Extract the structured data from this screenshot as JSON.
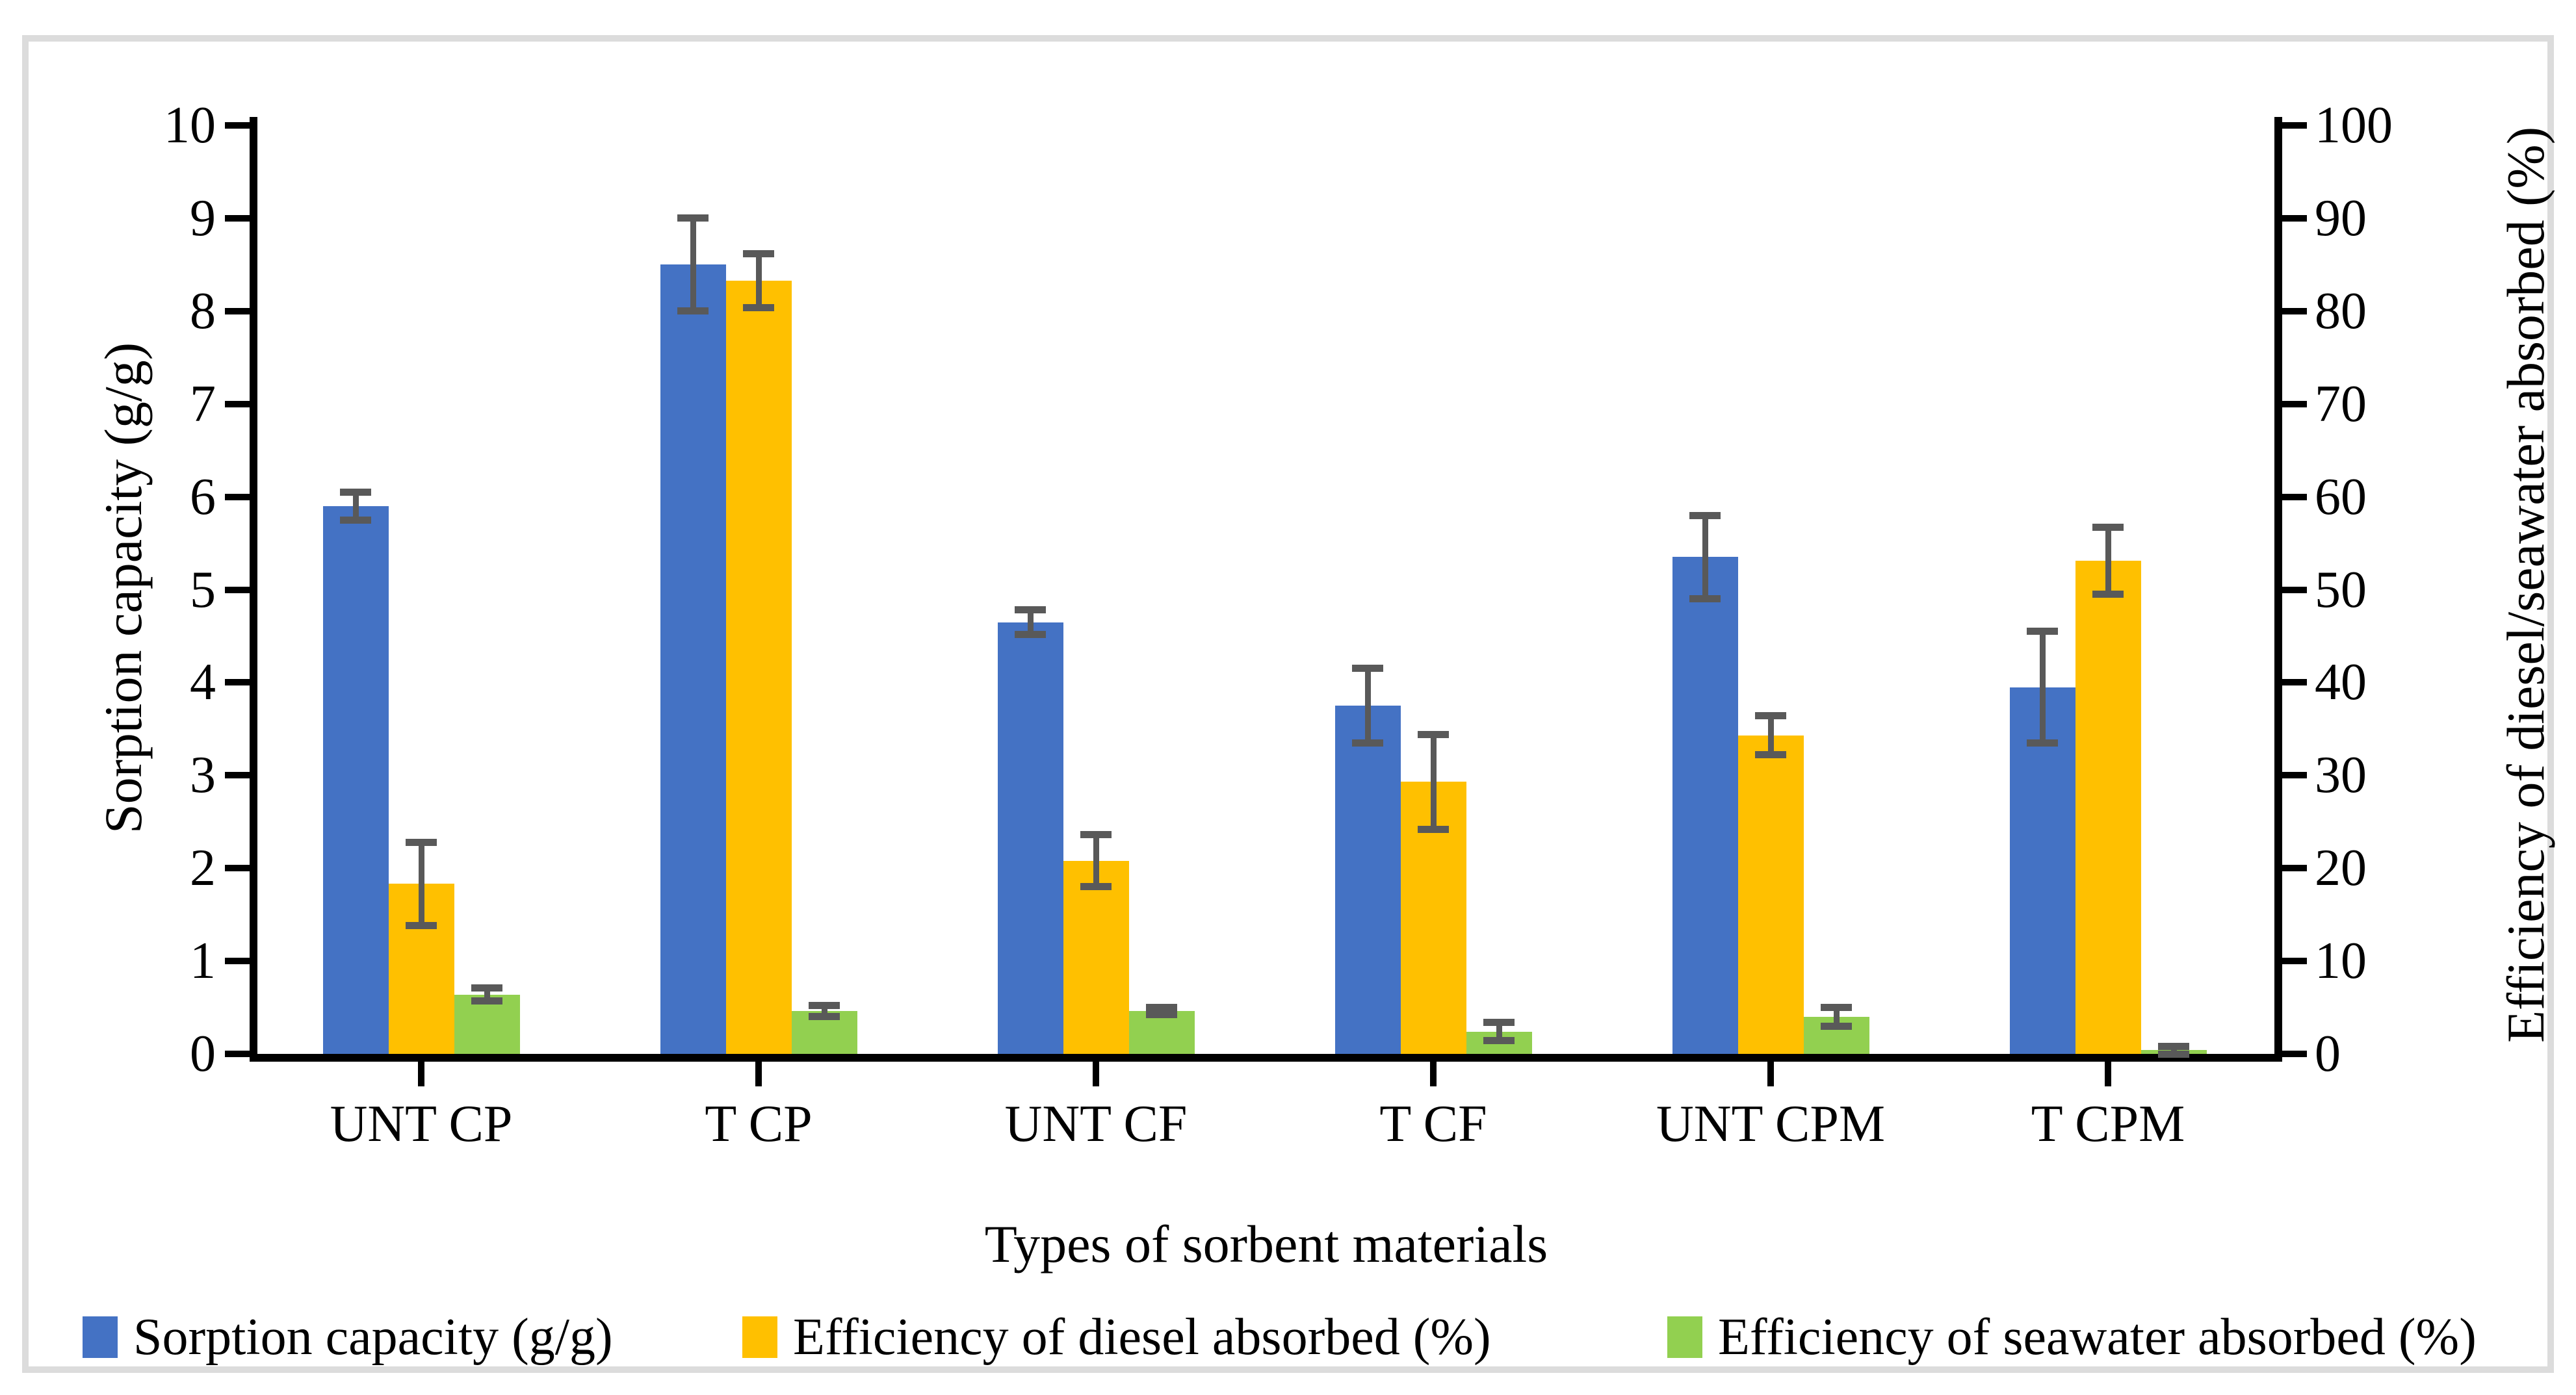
{
  "chart_data": {
    "type": "bar",
    "title": "",
    "categories": [
      "UNT CP",
      "T CP",
      "UNT CF",
      "T CF",
      "UNT CPM",
      "T CPM"
    ],
    "xlabel": "Types of sorbent materials",
    "ylabel_left": "Sorption capacity (g/g)",
    "ylabel_right": "Efficiency of diesel/seawater absorbed (%)",
    "left_axis": {
      "min": 0,
      "max": 10,
      "step": 1
    },
    "right_axis": {
      "min": 0,
      "max": 100,
      "step": 10
    },
    "grid": false,
    "legend_position": "bottom",
    "error_bar_color": "#595959",
    "series": [
      {
        "name": "Sorption capacity (g/g)",
        "axis": "left",
        "color": "#4472C4",
        "values": [
          5.9,
          8.5,
          4.65,
          3.75,
          5.35,
          3.95
        ],
        "errors": [
          0.15,
          0.5,
          0.13,
          0.4,
          0.45,
          0.6
        ]
      },
      {
        "name": "Efficiency of diesel absorbed (%)",
        "axis": "right",
        "color": "#FFC000",
        "values": [
          18.3,
          83.3,
          20.8,
          29.3,
          34.3,
          53.1
        ],
        "errors": [
          4.5,
          2.9,
          2.8,
          5.1,
          2.1,
          3.6
        ]
      },
      {
        "name": "Efficiency of seawater absorbed (%)",
        "axis": "right",
        "color": "#92D050",
        "values": [
          6.4,
          4.6,
          4.6,
          2.4,
          4.0,
          0.4
        ],
        "errors": [
          0.7,
          0.6,
          0.4,
          1.0,
          1.0,
          0.4
        ]
      }
    ]
  }
}
